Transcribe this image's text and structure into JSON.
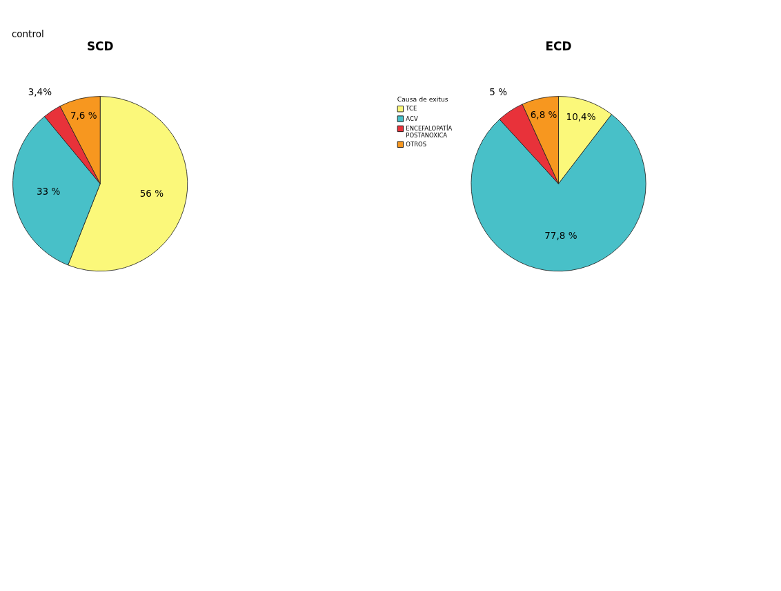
{
  "chart_data": [
    {
      "type": "pie",
      "title": "SCD",
      "annotations": [
        "control"
      ],
      "categories": [
        "TCE",
        "ACV",
        "ENCEFALOPATÍA POSTANOXICA",
        "OTROS"
      ],
      "values": [
        56,
        33,
        3.4,
        7.6
      ],
      "colors": [
        "#fbf87a",
        "#48c0c8",
        "#e8323a",
        "#f7971f"
      ],
      "value_labels": [
        "56 %",
        "33 %",
        "3,4%",
        "7,6 %"
      ],
      "legend": "right",
      "legend_title": "Causa de exitus"
    },
    {
      "type": "pie",
      "title": "ECD",
      "categories": [
        null,
        null,
        null,
        null
      ],
      "values": [
        10.4,
        77.8,
        5,
        6.8
      ],
      "colors": [
        "#fbf87a",
        "#48c0c8",
        "#e8323a",
        "#f7971f"
      ],
      "value_labels": [
        "10,4%",
        "77,8 %",
        "5 %",
        "6,8 %"
      ]
    }
  ]
}
